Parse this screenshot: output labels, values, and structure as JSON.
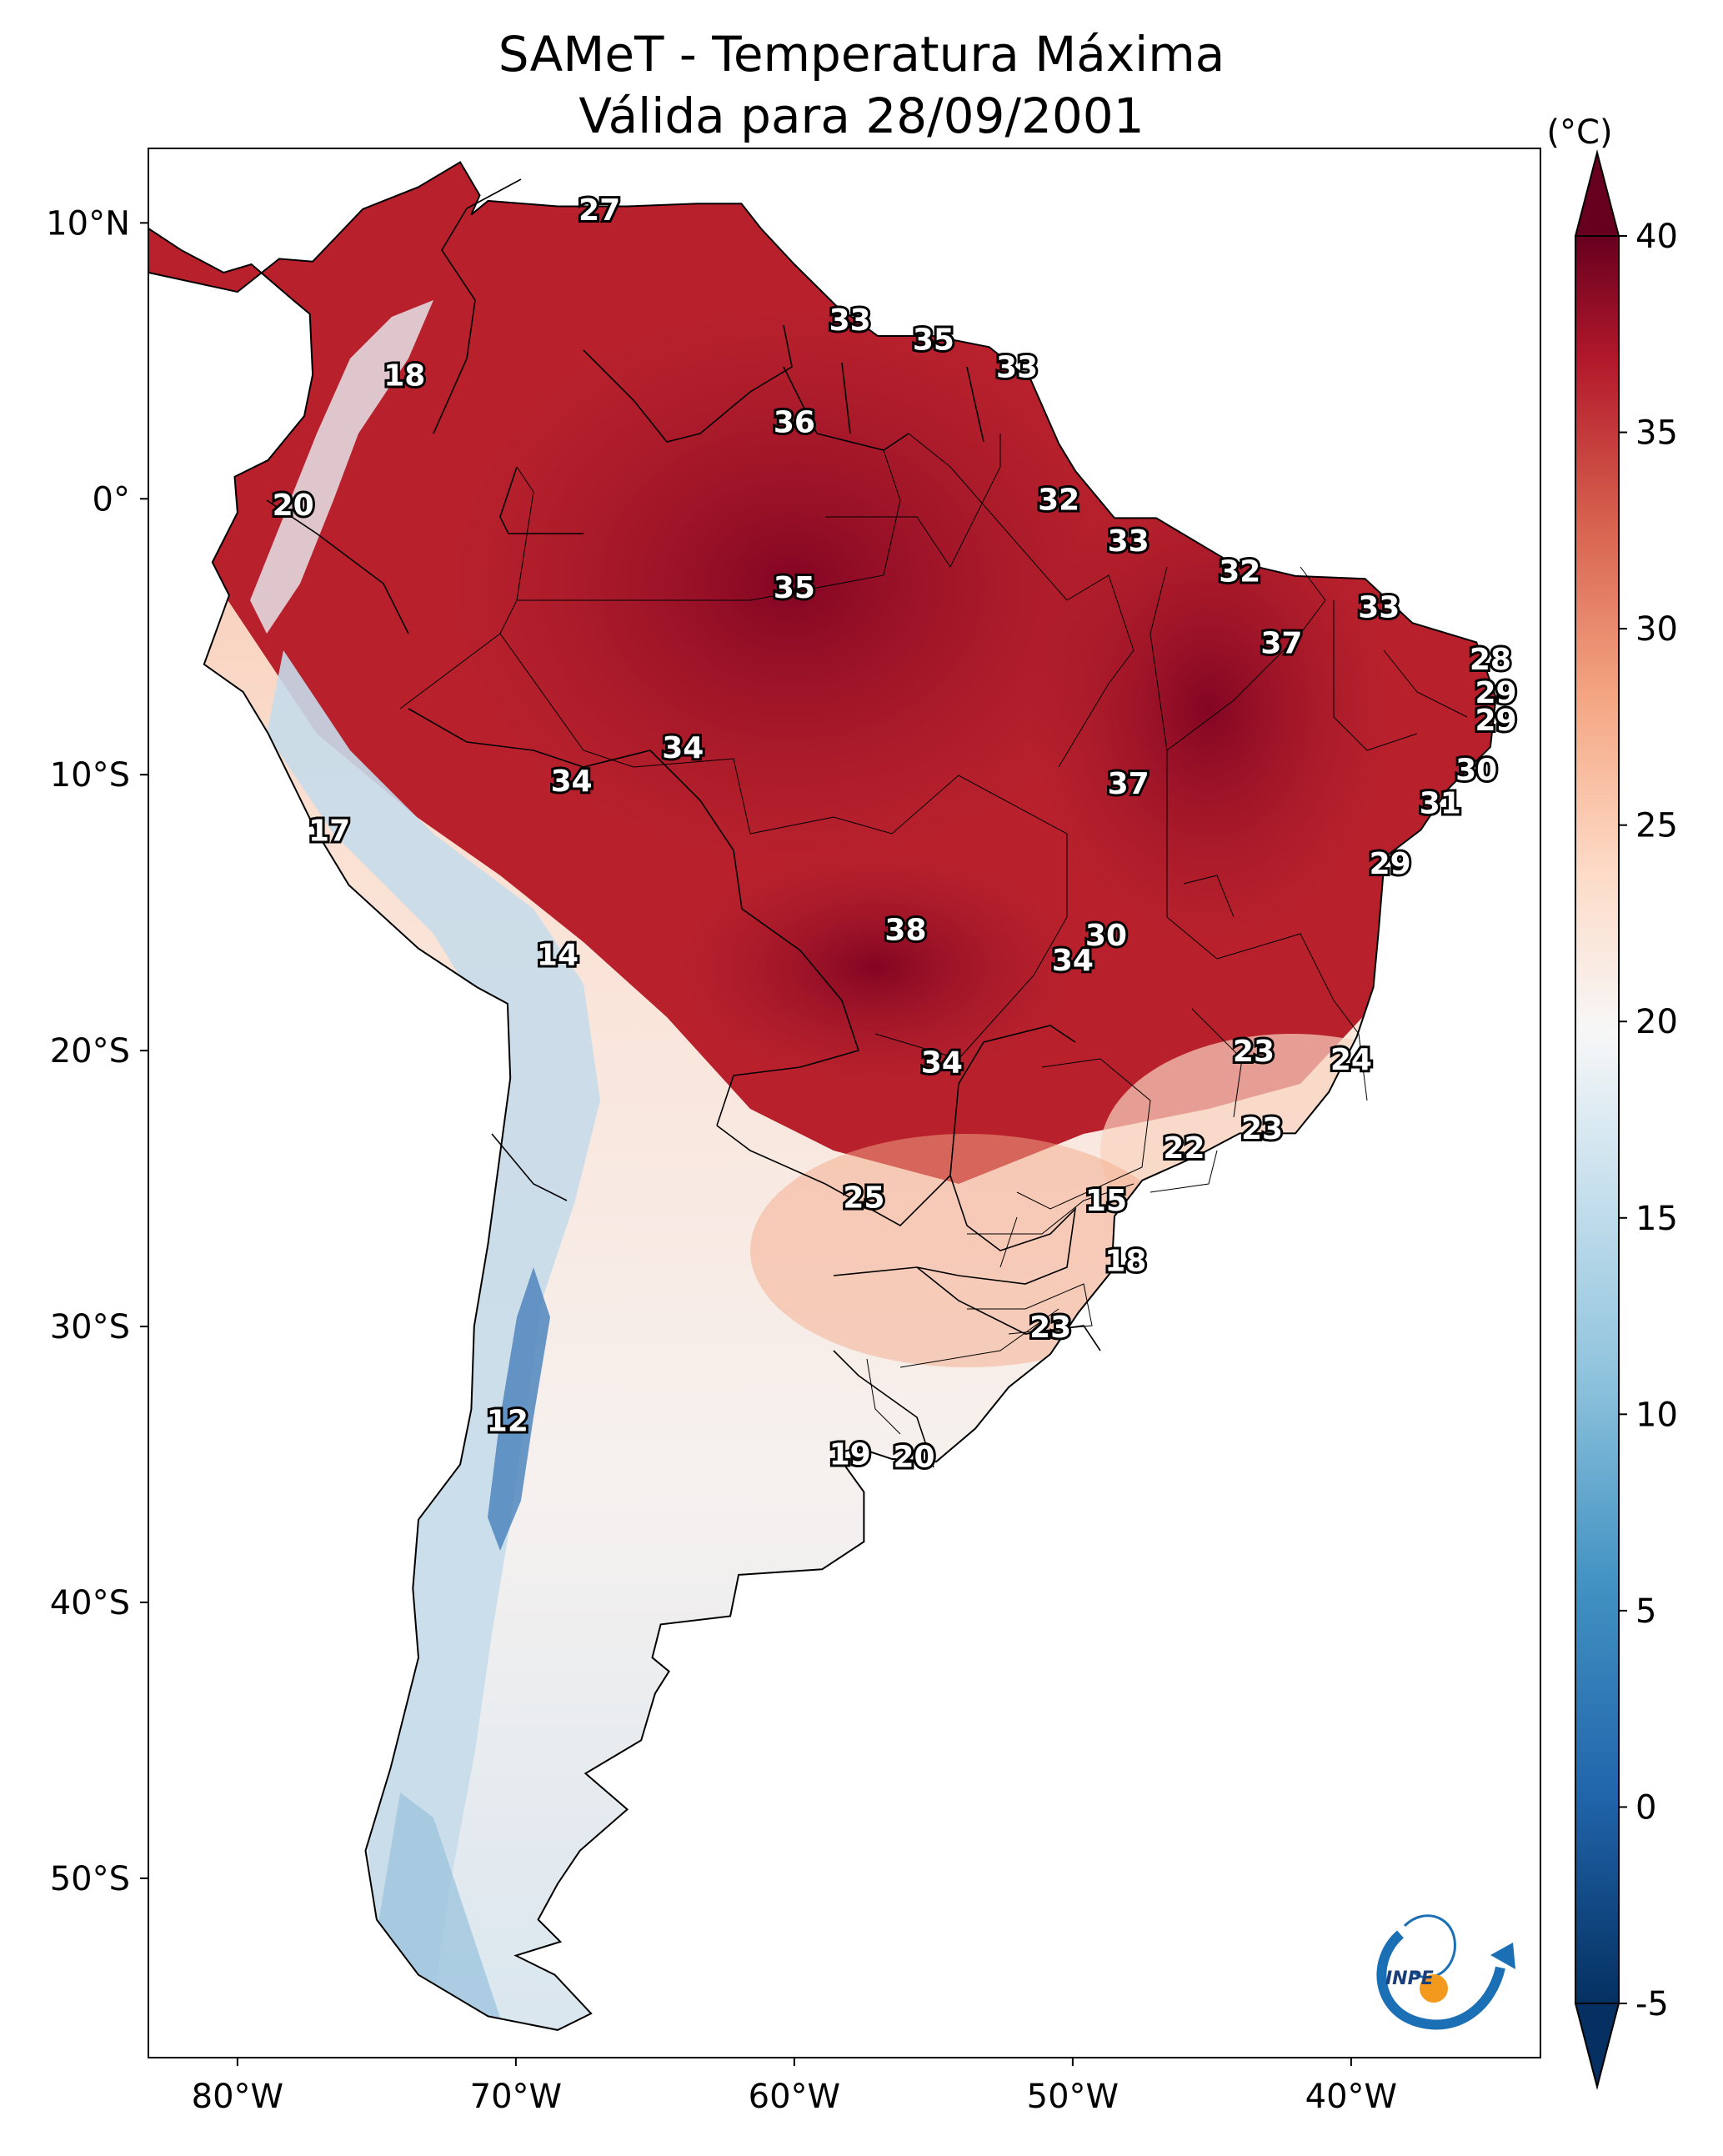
{
  "title": {
    "line1": "SAMeT - Temperatura Máxima",
    "line2": "Válida para 28/09/2001"
  },
  "map": {
    "lon_ticks": [
      "80°W",
      "70°W",
      "60°W",
      "50°W",
      "40°W"
    ],
    "lat_ticks": [
      "10°N",
      "0°",
      "10°S",
      "20°S",
      "30°S",
      "40°S",
      "50°S"
    ]
  },
  "colorbar": {
    "unit": "(°C)",
    "ticks": [
      "40",
      "35",
      "30",
      "25",
      "20",
      "15",
      "10",
      "5",
      "0",
      "-5"
    ],
    "min": -5,
    "max": 40,
    "colors": {
      "hot": "#67001f",
      "warm": "#d6604d",
      "neutral": "#f7f7f7",
      "cool": "#92c5de",
      "cold": "#053061"
    }
  },
  "temperature_labels": [
    {
      "v": "27",
      "lon": -67,
      "lat": 10.5
    },
    {
      "v": "18",
      "lon": -74,
      "lat": 4.5
    },
    {
      "v": "33",
      "lon": -58,
      "lat": 6.5
    },
    {
      "v": "35",
      "lon": -55,
      "lat": 5.8
    },
    {
      "v": "33",
      "lon": -52,
      "lat": 4.8
    },
    {
      "v": "36",
      "lon": -60,
      "lat": 2.8
    },
    {
      "v": "20",
      "lon": -78,
      "lat": -0.2
    },
    {
      "v": "32",
      "lon": -50.5,
      "lat": 0
    },
    {
      "v": "33",
      "lon": -48,
      "lat": -1.5
    },
    {
      "v": "35",
      "lon": -60,
      "lat": -3.2
    },
    {
      "v": "32",
      "lon": -44,
      "lat": -2.6
    },
    {
      "v": "33",
      "lon": -39,
      "lat": -3.9
    },
    {
      "v": "37",
      "lon": -42.5,
      "lat": -5.2
    },
    {
      "v": "28",
      "lon": -35,
      "lat": -5.8
    },
    {
      "v": "29",
      "lon": -34.8,
      "lat": -7
    },
    {
      "v": "29",
      "lon": -34.8,
      "lat": -8
    },
    {
      "v": "34",
      "lon": -64,
      "lat": -9.0
    },
    {
      "v": "34",
      "lon": -68,
      "lat": -10.2
    },
    {
      "v": "30",
      "lon": -35.5,
      "lat": -9.8
    },
    {
      "v": "37",
      "lon": -48,
      "lat": -10.3
    },
    {
      "v": "31",
      "lon": -36.8,
      "lat": -11.0
    },
    {
      "v": "17",
      "lon": -76.7,
      "lat": -12
    },
    {
      "v": "29",
      "lon": -38.6,
      "lat": -13.2
    },
    {
      "v": "38",
      "lon": -56,
      "lat": -15.6
    },
    {
      "v": "30",
      "lon": -48.8,
      "lat": -15.8
    },
    {
      "v": "34",
      "lon": -50,
      "lat": -16.7
    },
    {
      "v": "14",
      "lon": -68.5,
      "lat": -16.5
    },
    {
      "v": "23",
      "lon": -43.5,
      "lat": -20
    },
    {
      "v": "24",
      "lon": -40,
      "lat": -20.3
    },
    {
      "v": "34",
      "lon": -54.7,
      "lat": -20.4
    },
    {
      "v": "23",
      "lon": -43.2,
      "lat": -22.8
    },
    {
      "v": "22",
      "lon": -46,
      "lat": -23.5
    },
    {
      "v": "25",
      "lon": -57.5,
      "lat": -25.3
    },
    {
      "v": "15",
      "lon": -48.8,
      "lat": -25.4
    },
    {
      "v": "18",
      "lon": -48.1,
      "lat": -27.6
    },
    {
      "v": "23",
      "lon": -50.8,
      "lat": -30
    },
    {
      "v": "12",
      "lon": -70.3,
      "lat": -33.4
    },
    {
      "v": "19",
      "lon": -58,
      "lat": -34.6
    },
    {
      "v": "20",
      "lon": -55.7,
      "lat": -34.7
    }
  ]
}
